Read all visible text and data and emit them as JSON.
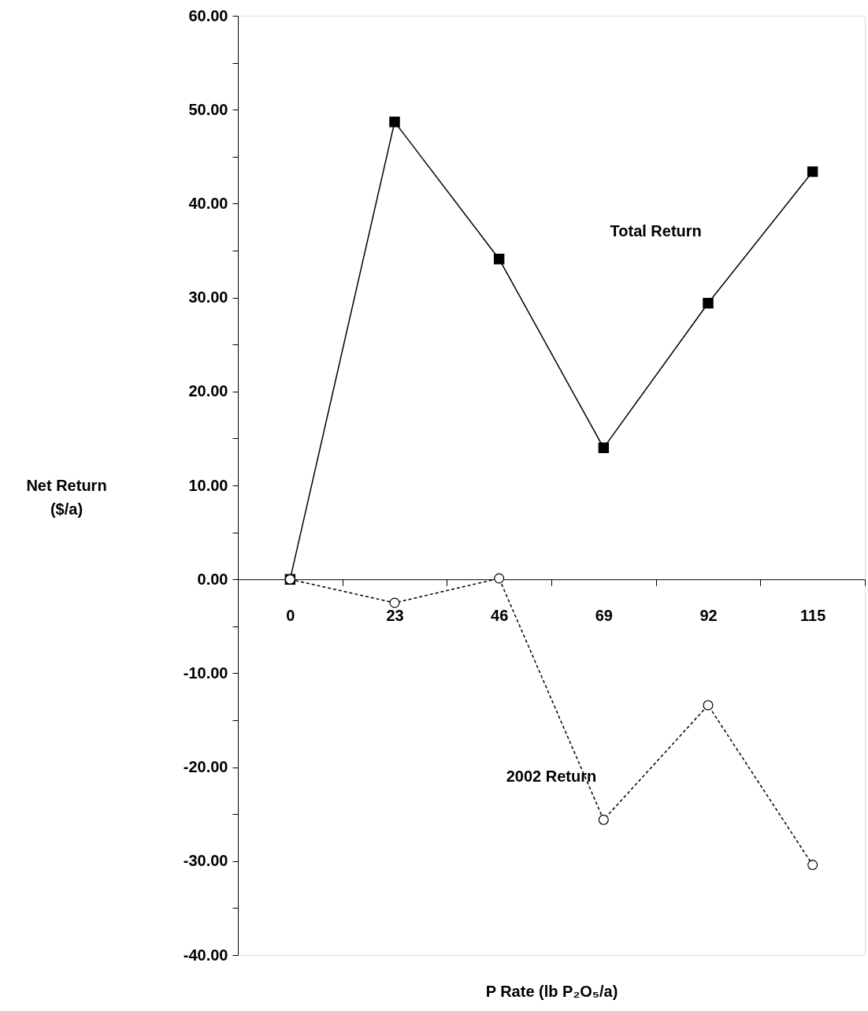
{
  "chart_data": {
    "type": "line",
    "xlabel": "P Rate (lb P₂O₅/a)",
    "ylabel": "Net Return ($/a)",
    "categories": [
      "0",
      "23",
      "46",
      "69",
      "92",
      "115"
    ],
    "series": [
      {
        "name": "Total Return",
        "color": "#000000",
        "marker": "square",
        "line_style": "solid",
        "values": [
          0,
          48.7,
          34.1,
          14.0,
          29.4,
          43.4
        ]
      },
      {
        "name": "2002 Return",
        "color": "#000000",
        "marker": "circle",
        "line_style": "dashed",
        "values": [
          0,
          -2.5,
          0.1,
          -25.6,
          -13.4,
          -30.4
        ]
      }
    ],
    "ylim": [
      -40,
      60
    ],
    "yticks": [
      {
        "value": -40,
        "label": "-40.00"
      },
      {
        "value": -35,
        "label": null
      },
      {
        "value": -30,
        "label": "-30.00"
      },
      {
        "value": -25,
        "label": null
      },
      {
        "value": -20,
        "label": "-20.00"
      },
      {
        "value": -15,
        "label": null
      },
      {
        "value": -10,
        "label": "-10.00"
      },
      {
        "value": -5,
        "label": null
      },
      {
        "value": 0,
        "label": "0.00"
      },
      {
        "value": 5,
        "label": null
      },
      {
        "value": 10,
        "label": "10.00"
      },
      {
        "value": 15,
        "label": null
      },
      {
        "value": 20,
        "label": "20.00"
      },
      {
        "value": 25,
        "label": null
      },
      {
        "value": 30,
        "label": "30.00"
      },
      {
        "value": 35,
        "label": null
      },
      {
        "value": 40,
        "label": "40.00"
      },
      {
        "value": 45,
        "label": null
      },
      {
        "value": 50,
        "label": "50.00"
      },
      {
        "value": 55,
        "label": null
      },
      {
        "value": 60,
        "label": "60.00"
      }
    ],
    "grid": false,
    "legend": false
  }
}
